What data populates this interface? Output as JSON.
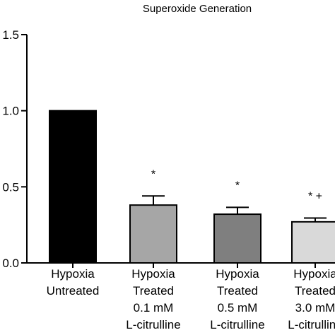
{
  "chart_data": {
    "type": "bar",
    "title": "Superoxide Generation",
    "xlabel": "",
    "ylabel": "",
    "ylim": [
      0,
      1.5
    ],
    "yticks": [
      0.0,
      0.5,
      1.0,
      1.5
    ],
    "ytick_labels": [
      "0.0",
      "0.5",
      "1.0",
      "1.5"
    ],
    "grid": false,
    "categories": [
      [
        "Hypoxia",
        "Untreated"
      ],
      [
        "Hypoxia",
        "Treated",
        "0.1 mM",
        "L-citrulline"
      ],
      [
        "Hypoxia",
        "Treated",
        "0.5 mM",
        "L-citrulline"
      ],
      [
        "Hypoxia",
        "Treated",
        "3.0 mM",
        "L-citrulline"
      ]
    ],
    "values": [
      1.0,
      0.38,
      0.32,
      0.27
    ],
    "errors": [
      0.0,
      0.06,
      0.045,
      0.025
    ],
    "significance": [
      "",
      "*",
      "*",
      "* +"
    ],
    "colors": [
      "#000000",
      "#a6a6a6",
      "#7f7f7f",
      "#d9d9d9"
    ]
  }
}
